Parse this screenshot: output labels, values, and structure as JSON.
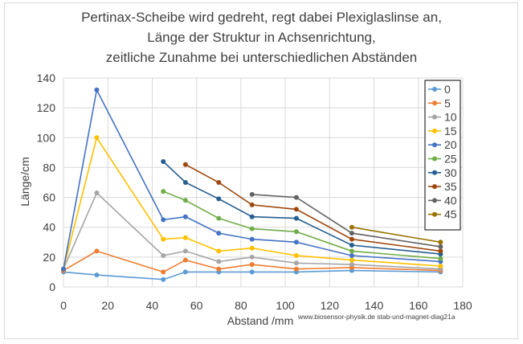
{
  "chart_data": {
    "type": "line",
    "title_lines": [
      "Pertinax-Scheibe wird gedreht, regt dabei Plexiglaslinse an,",
      "Länge der Struktur in Achsenrichtung,",
      "zeitliche Zunahme  bei unterschiedlichen Abständen"
    ],
    "xlabel": "Abstand /mm",
    "ylabel": "Länge/cm",
    "xlim": [
      0,
      180
    ],
    "ylim": [
      0,
      140
    ],
    "xticks": [
      "0",
      "20",
      "40",
      "60",
      "80",
      "100",
      "120",
      "140",
      "160",
      "180"
    ],
    "yticks": [
      "0",
      "20",
      "40",
      "60",
      "80",
      "100",
      "120",
      "140"
    ],
    "annotation": "www.biosensor-physik.de  stab-und-magnet-diag21a",
    "legend_position": "right",
    "series": [
      {
        "name": "0",
        "color": "#5b9bd5",
        "x": [
          0,
          15,
          45,
          55,
          70,
          85,
          105,
          130,
          170
        ],
        "y": [
          10,
          8,
          5,
          10,
          10,
          10,
          10,
          11,
          10
        ]
      },
      {
        "name": "5",
        "color": "#ed7d31",
        "x": [
          0,
          15,
          45,
          55,
          70,
          85,
          105,
          130,
          170
        ],
        "y": [
          11,
          24,
          10,
          18,
          12,
          15,
          12,
          13,
          11
        ]
      },
      {
        "name": "10",
        "color": "#a5a5a5",
        "x": [
          0,
          15,
          45,
          55,
          70,
          85,
          105,
          130,
          170
        ],
        "y": [
          12,
          63,
          21,
          24,
          17,
          20,
          16,
          15,
          12
        ]
      },
      {
        "name": "15",
        "color": "#ffc000",
        "x": [
          0,
          15,
          45,
          55,
          70,
          85,
          105,
          130,
          170
        ],
        "y": [
          12,
          100,
          32,
          33,
          24,
          26,
          21,
          18,
          14
        ]
      },
      {
        "name": "20",
        "color": "#4472c4",
        "x": [
          0,
          15,
          45,
          55,
          70,
          85,
          105,
          130,
          170
        ],
        "y": [
          12,
          132,
          45,
          47,
          36,
          32,
          30,
          21,
          17
        ]
      },
      {
        "name": "25",
        "color": "#70ad47",
        "x": [
          45,
          55,
          70,
          85,
          105,
          130,
          170
        ],
        "y": [
          64,
          58,
          46,
          39,
          37,
          24,
          19
        ]
      },
      {
        "name": "30",
        "color": "#255e91",
        "x": [
          45,
          55,
          70,
          85,
          105,
          130,
          170
        ],
        "y": [
          84,
          70,
          59,
          47,
          46,
          28,
          22
        ]
      },
      {
        "name": "35",
        "color": "#9e480e",
        "x": [
          55,
          70,
          85,
          105,
          130,
          170
        ],
        "y": [
          82,
          70,
          55,
          52,
          32,
          24
        ]
      },
      {
        "name": "40",
        "color": "#636363",
        "x": [
          85,
          105,
          130,
          170
        ],
        "y": [
          62,
          60,
          36,
          27
        ]
      },
      {
        "name": "45",
        "color": "#997300",
        "x": [
          130,
          170
        ],
        "y": [
          40,
          30
        ]
      }
    ]
  }
}
